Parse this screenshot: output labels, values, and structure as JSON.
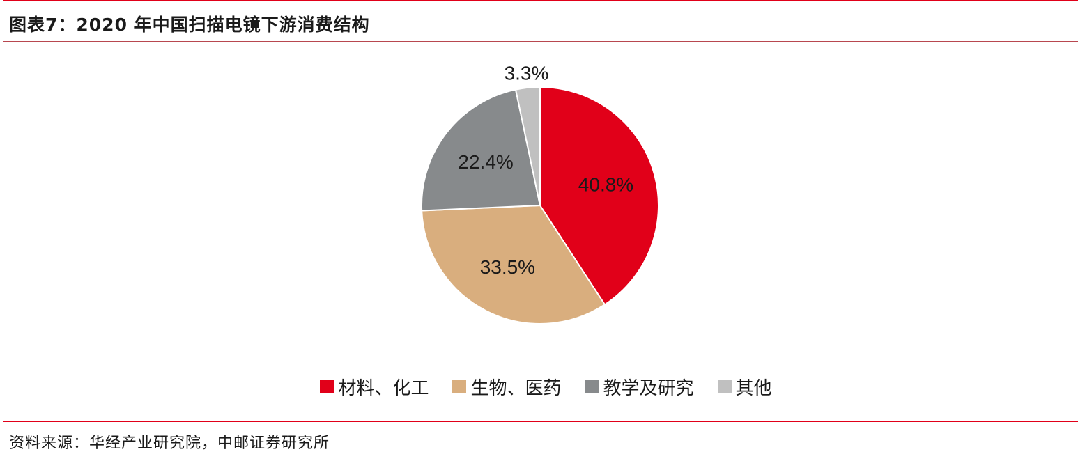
{
  "header": {
    "title": "图表7：2020 年中国扫描电镜下游消费结构"
  },
  "footer": {
    "source": "资料来源：华经产业研究院，中邮证券研究所"
  },
  "colors": {
    "accent": "#e10019",
    "title_rule": "#b8474f"
  },
  "chart_data": {
    "type": "pie",
    "title": "",
    "slices": [
      {
        "label": "材料、化工",
        "value": 40.8,
        "display": "40.8%",
        "color": "#e10019"
      },
      {
        "label": "生物、医药",
        "value": 33.5,
        "display": "33.5%",
        "color": "#d9ae7e"
      },
      {
        "label": "教学及研究",
        "value": 22.4,
        "display": "22.4%",
        "color": "#878a8c"
      },
      {
        "label": "其他",
        "value": 3.3,
        "display": "3.3%",
        "color": "#c0c0c0"
      }
    ],
    "start_angle": "12 o'clock",
    "direction": "clockwise",
    "legend": {
      "placement": "bottom",
      "entries": [
        "材料、化工",
        "生物、医药",
        "教学及研究",
        "其他"
      ]
    }
  }
}
